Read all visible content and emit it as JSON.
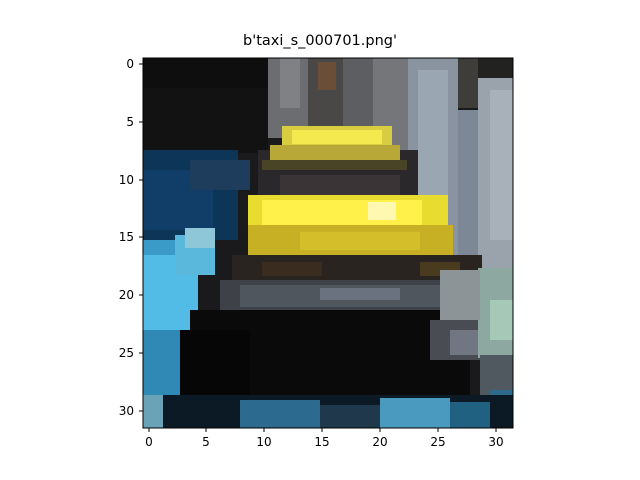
{
  "title": "b'taxi_s_000701.png'",
  "axes": {
    "x_ticks": [
      "0",
      "5",
      "10",
      "15",
      "20",
      "25",
      "30"
    ],
    "y_ticks": [
      "0",
      "5",
      "10",
      "15",
      "20",
      "25",
      "30"
    ],
    "x_range": [
      -0.5,
      31.5
    ],
    "y_range": [
      -0.5,
      31.5
    ],
    "image_grid": [
      32,
      32
    ]
  },
  "image": {
    "description_icon": "pixelated-taxi-image",
    "grid": 32
  }
}
